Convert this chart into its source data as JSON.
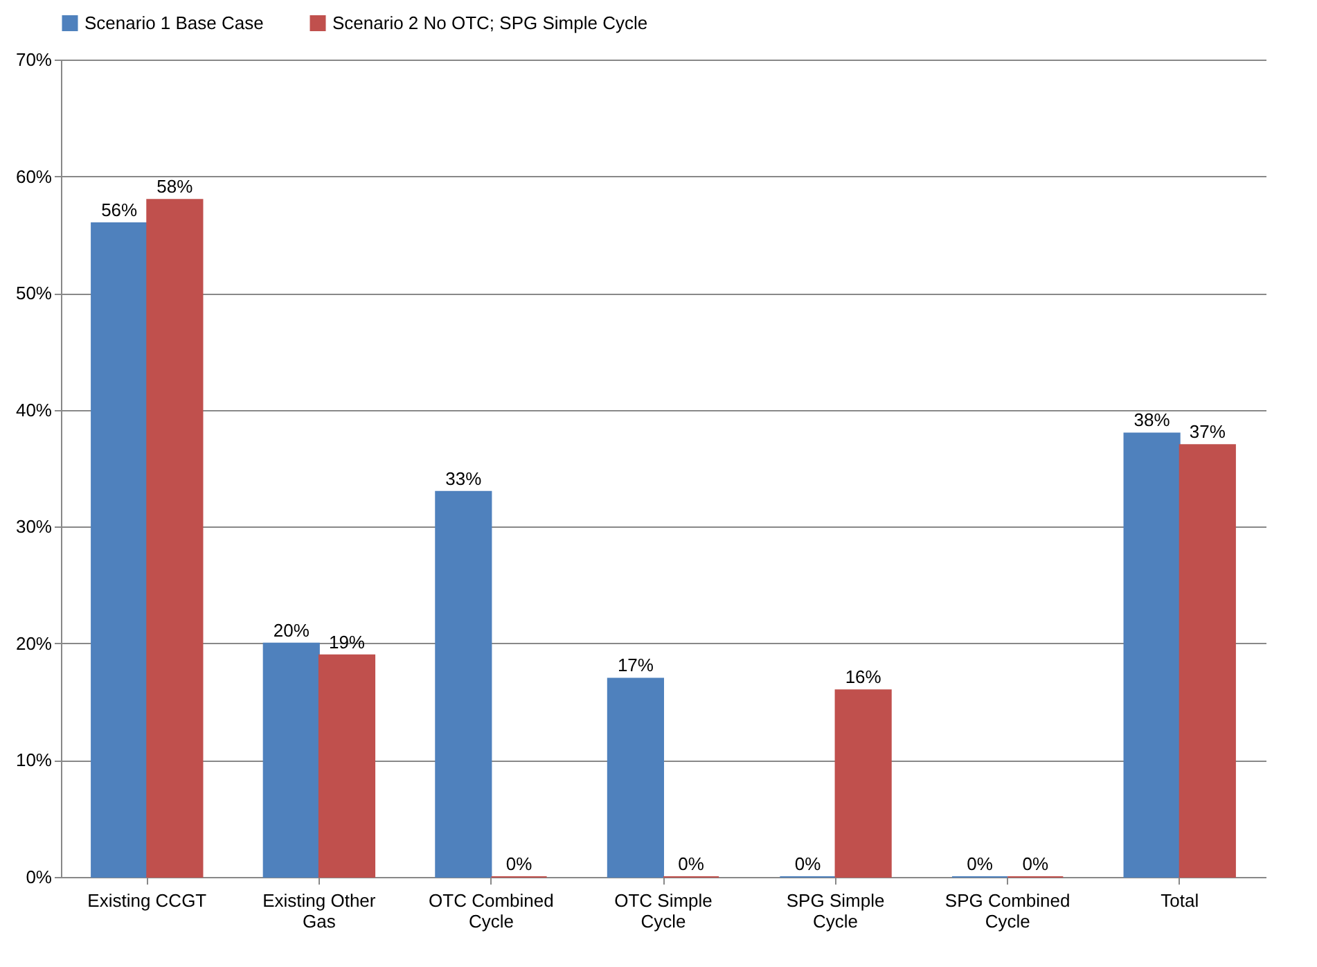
{
  "chart_data": {
    "type": "bar",
    "categories": [
      "Existing CCGT",
      "Existing Other Gas",
      "OTC Combined Cycle",
      "OTC Simple Cycle",
      "SPG Simple Cycle",
      "SPG Combined Cycle",
      "Total"
    ],
    "series": [
      {
        "name": "Scenario 1 Base Case",
        "color": "#4f81bd",
        "values": [
          56,
          20,
          33,
          17,
          0,
          0,
          38
        ],
        "value_labels": [
          "56%",
          "20%",
          "33%",
          "17%",
          "0%",
          "0%",
          "38%"
        ]
      },
      {
        "name": "Scenario 2 No OTC; SPG Simple Cycle",
        "color": "#c0504d",
        "values": [
          58,
          19,
          0,
          0,
          16,
          0,
          37
        ],
        "value_labels": [
          "58%",
          "19%",
          "0%",
          "0%",
          "16%",
          "0%",
          "37%"
        ]
      }
    ],
    "ylim": [
      0,
      70
    ],
    "yticks": [
      {
        "value": 0,
        "label": "0%"
      },
      {
        "value": 10,
        "label": "10%"
      },
      {
        "value": 20,
        "label": "20%"
      },
      {
        "value": 30,
        "label": "30%"
      },
      {
        "value": 40,
        "label": "40%"
      },
      {
        "value": 50,
        "label": "50%"
      },
      {
        "value": 60,
        "label": "60%"
      },
      {
        "value": 70,
        "label": "70%"
      }
    ],
    "grid": "y",
    "legend": "top"
  }
}
